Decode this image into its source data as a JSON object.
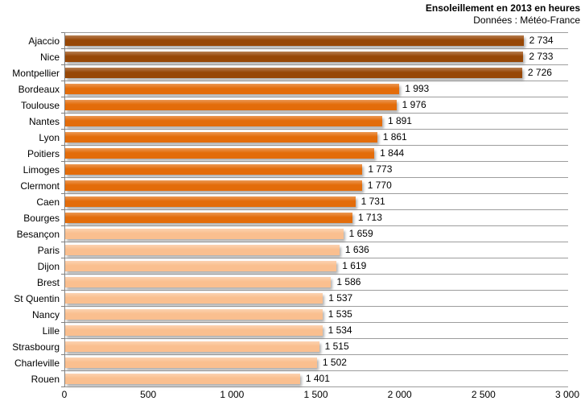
{
  "header": {
    "title": "Ensoleillement en 2013 en heures",
    "subtitle": "Données : Météo-France"
  },
  "chart_data": {
    "type": "bar",
    "orientation": "horizontal",
    "title": "Ensoleillement en 2013 en heures",
    "subtitle": "Données : Météo-France",
    "xlabel": "",
    "ylabel": "",
    "xlim": [
      0,
      3000
    ],
    "x_ticks": [
      0,
      500,
      1000,
      1500,
      2000,
      2500,
      3000
    ],
    "x_tick_labels": [
      "0",
      "500",
      "1 000",
      "1 500",
      "2 000",
      "2 500",
      "3 000"
    ],
    "grid": "horizontal category gridlines only, no vertical gridlines",
    "legend": "none",
    "categories": [
      "Ajaccio",
      "Nice",
      "Montpellier",
      "Bordeaux",
      "Toulouse",
      "Nantes",
      "Lyon",
      "Poitiers",
      "Limoges",
      "Clermont",
      "Caen",
      "Bourges",
      "Besançon",
      "Paris",
      "Dijon",
      "Brest",
      "St Quentin",
      "Nancy",
      "Lille",
      "Strasbourg",
      "Charleville",
      "Rouen"
    ],
    "values": [
      2734,
      2733,
      2726,
      1993,
      1976,
      1891,
      1861,
      1844,
      1773,
      1770,
      1731,
      1713,
      1659,
      1636,
      1619,
      1586,
      1537,
      1535,
      1534,
      1515,
      1502,
      1401
    ],
    "value_labels": [
      "2 734",
      "2 733",
      "2 726",
      "1 993",
      "1 976",
      "1 891",
      "1 861",
      "1 844",
      "1 773",
      "1 770",
      "1 731",
      "1 713",
      "1 659",
      "1 636",
      "1 619",
      "1 586",
      "1 537",
      "1 535",
      "1 534",
      "1 515",
      "1 502",
      "1 401"
    ],
    "bar_colors": [
      "#974706",
      "#974706",
      "#974706",
      "#E36C0A",
      "#E36C0A",
      "#E36C0A",
      "#E36C0A",
      "#E36C0A",
      "#E36C0A",
      "#E36C0A",
      "#E36C0A",
      "#E36C0A",
      "#FABF8F",
      "#FABF8F",
      "#FABF8F",
      "#FABF8F",
      "#FABF8F",
      "#FABF8F",
      "#FABF8F",
      "#FABF8F",
      "#FABF8F",
      "#FABF8F"
    ],
    "color_groups": {
      "dark_brown": "#974706",
      "orange": "#E36C0A",
      "light_orange": "#FABF8F"
    },
    "gridline_color": "#9D9D9D",
    "axis_line_color": "#808080"
  }
}
